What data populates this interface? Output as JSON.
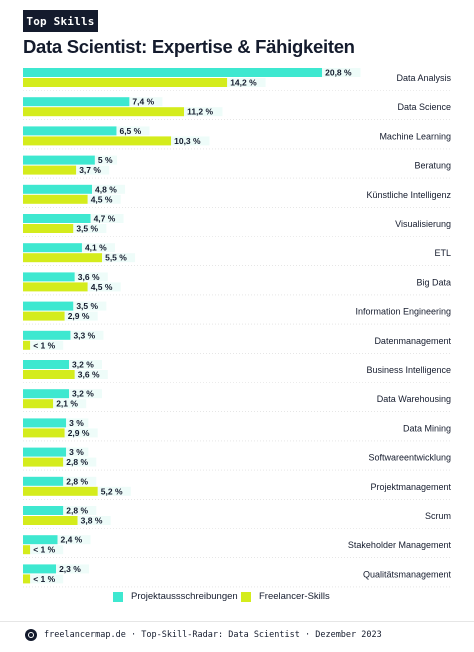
{
  "badge": "Top Skills",
  "title": "Data Scientist: Expertise & Fähigkeiten",
  "footer": "freelancermap.de · Top-Skill-Radar: Data Scientist · Dezember 2023",
  "colors": {
    "projekt": "#3ee8d0",
    "freelancer": "#d4ec1c",
    "text": "#141b2d",
    "label_bg": "#eefcf9"
  },
  "chart_data": {
    "type": "bar",
    "orientation": "horizontal",
    "categories": [
      "Data Analysis",
      "Data Science",
      "Machine Learning",
      "Beratung",
      "Künstliche Intelligenz",
      "Visualisierung",
      "ETL",
      "Big Data",
      "Information Engineering",
      "Datenmanagement",
      "Business Intelligence",
      "Data Warehousing",
      "Data Mining",
      "Softwareentwicklung",
      "Projektmanagement",
      "Scrum",
      "Stakeholder Management",
      "Qualitätsmanagement"
    ],
    "series": [
      {
        "name": "Projektaussschreibungen",
        "values": [
          20.8,
          7.4,
          6.5,
          5,
          4.8,
          4.7,
          4.1,
          3.6,
          3.5,
          3.3,
          3.2,
          3.2,
          3,
          3,
          2.8,
          2.8,
          2.4,
          2.3
        ],
        "labels": [
          "20,8 %",
          "7,4 %",
          "6,5 %",
          "5 %",
          "4,8 %",
          "4,7 %",
          "4,1 %",
          "3,6 %",
          "3,5 %",
          "3,3 %",
          "3,2 %",
          "3,2 %",
          "3 %",
          "3 %",
          "2,8 %",
          "2,8 %",
          "2,4 %",
          "2,3 %"
        ]
      },
      {
        "name": "Freelancer-Skills",
        "values": [
          14.2,
          11.2,
          10.3,
          3.7,
          4.5,
          3.5,
          5.5,
          4.5,
          2.9,
          0.5,
          3.6,
          2.1,
          2.9,
          2.8,
          5.2,
          3.8,
          0.5,
          0.5
        ],
        "labels": [
          "14,2 %",
          "11,2 %",
          "10,3 %",
          "3,7 %",
          "4,5 %",
          "3,5 %",
          "5,5 %",
          "4,5 %",
          "2,9 %",
          "< 1 %",
          "3,6 %",
          "2,1 %",
          "2,9 %",
          "2,8 %",
          "5,2 %",
          "3,8 %",
          "< 1 %",
          "< 1 %"
        ]
      }
    ],
    "xlim": [
      0,
      21
    ],
    "grid": false,
    "legend": "bottom"
  }
}
